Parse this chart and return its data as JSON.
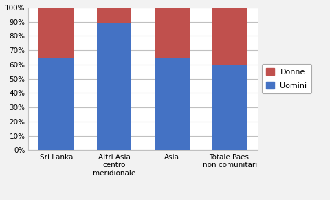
{
  "categories": [
    "Sri Lanka",
    "Altri Asia\ncentro\nmeridionale",
    "Asia",
    "Totale Paesi\nnon comunitari"
  ],
  "uomini": [
    65,
    89,
    65,
    60
  ],
  "donne": [
    35,
    11,
    35,
    40
  ],
  "color_uomini": "#4472C4",
  "color_donne": "#C0504D",
  "legend_uomini": "Uomini",
  "legend_donne": "Donne",
  "ylim": [
    0,
    100
  ],
  "yticks": [
    0,
    10,
    20,
    30,
    40,
    50,
    60,
    70,
    80,
    90,
    100
  ],
  "ytick_labels": [
    "0%",
    "10%",
    "20%",
    "30%",
    "40%",
    "50%",
    "60%",
    "70%",
    "80%",
    "90%",
    "100%"
  ],
  "background_color": "#F2F2F2",
  "plot_bg_color": "#FFFFFF",
  "bar_width": 0.6,
  "grid_color": "#C0C0C0",
  "spine_color": "#C0C0C0"
}
